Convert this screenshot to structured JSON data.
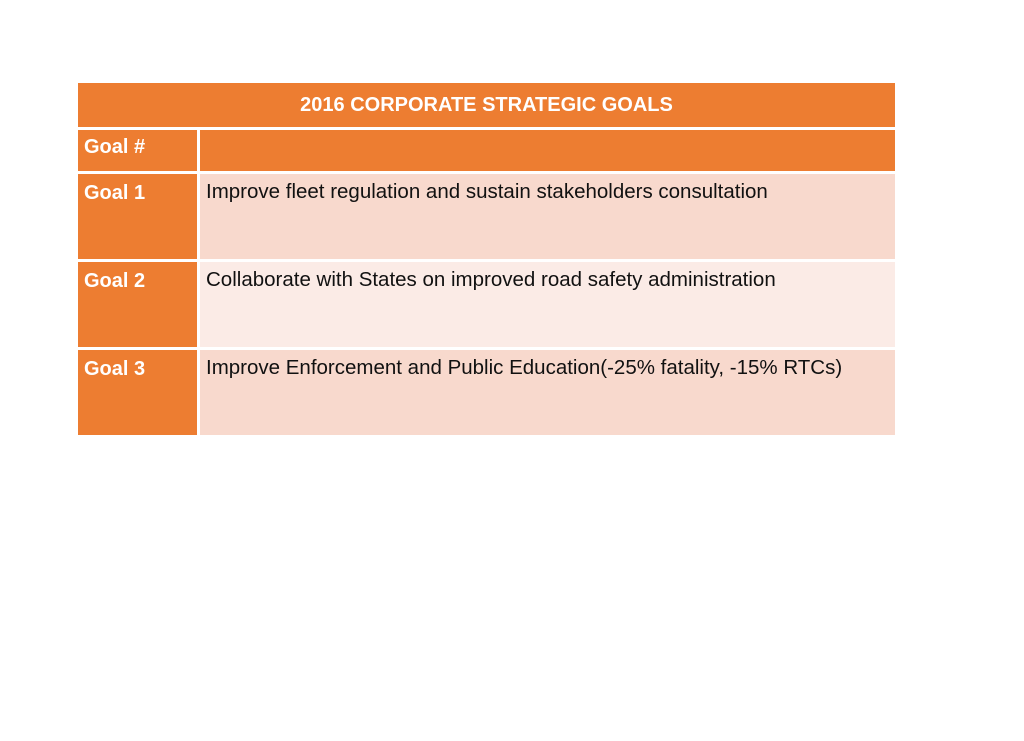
{
  "table": {
    "title": "2016 CORPORATE STRATEGIC GOALS",
    "header": {
      "id_label": "Goal #",
      "desc_label": ""
    },
    "rows": [
      {
        "id": "Goal 1",
        "description": "Improve fleet regulation and sustain stakeholders consultation"
      },
      {
        "id": "Goal 2",
        "description": "Collaborate with States on improved road safety administration"
      },
      {
        "id": "Goal 3",
        "description": "Improve Enforcement and Public Education(-25% fatality, -15% RTCs)"
      }
    ],
    "colors": {
      "header": "#ed7d31",
      "row_odd": "#f8d9cd",
      "row_even": "#fbebe6"
    }
  }
}
